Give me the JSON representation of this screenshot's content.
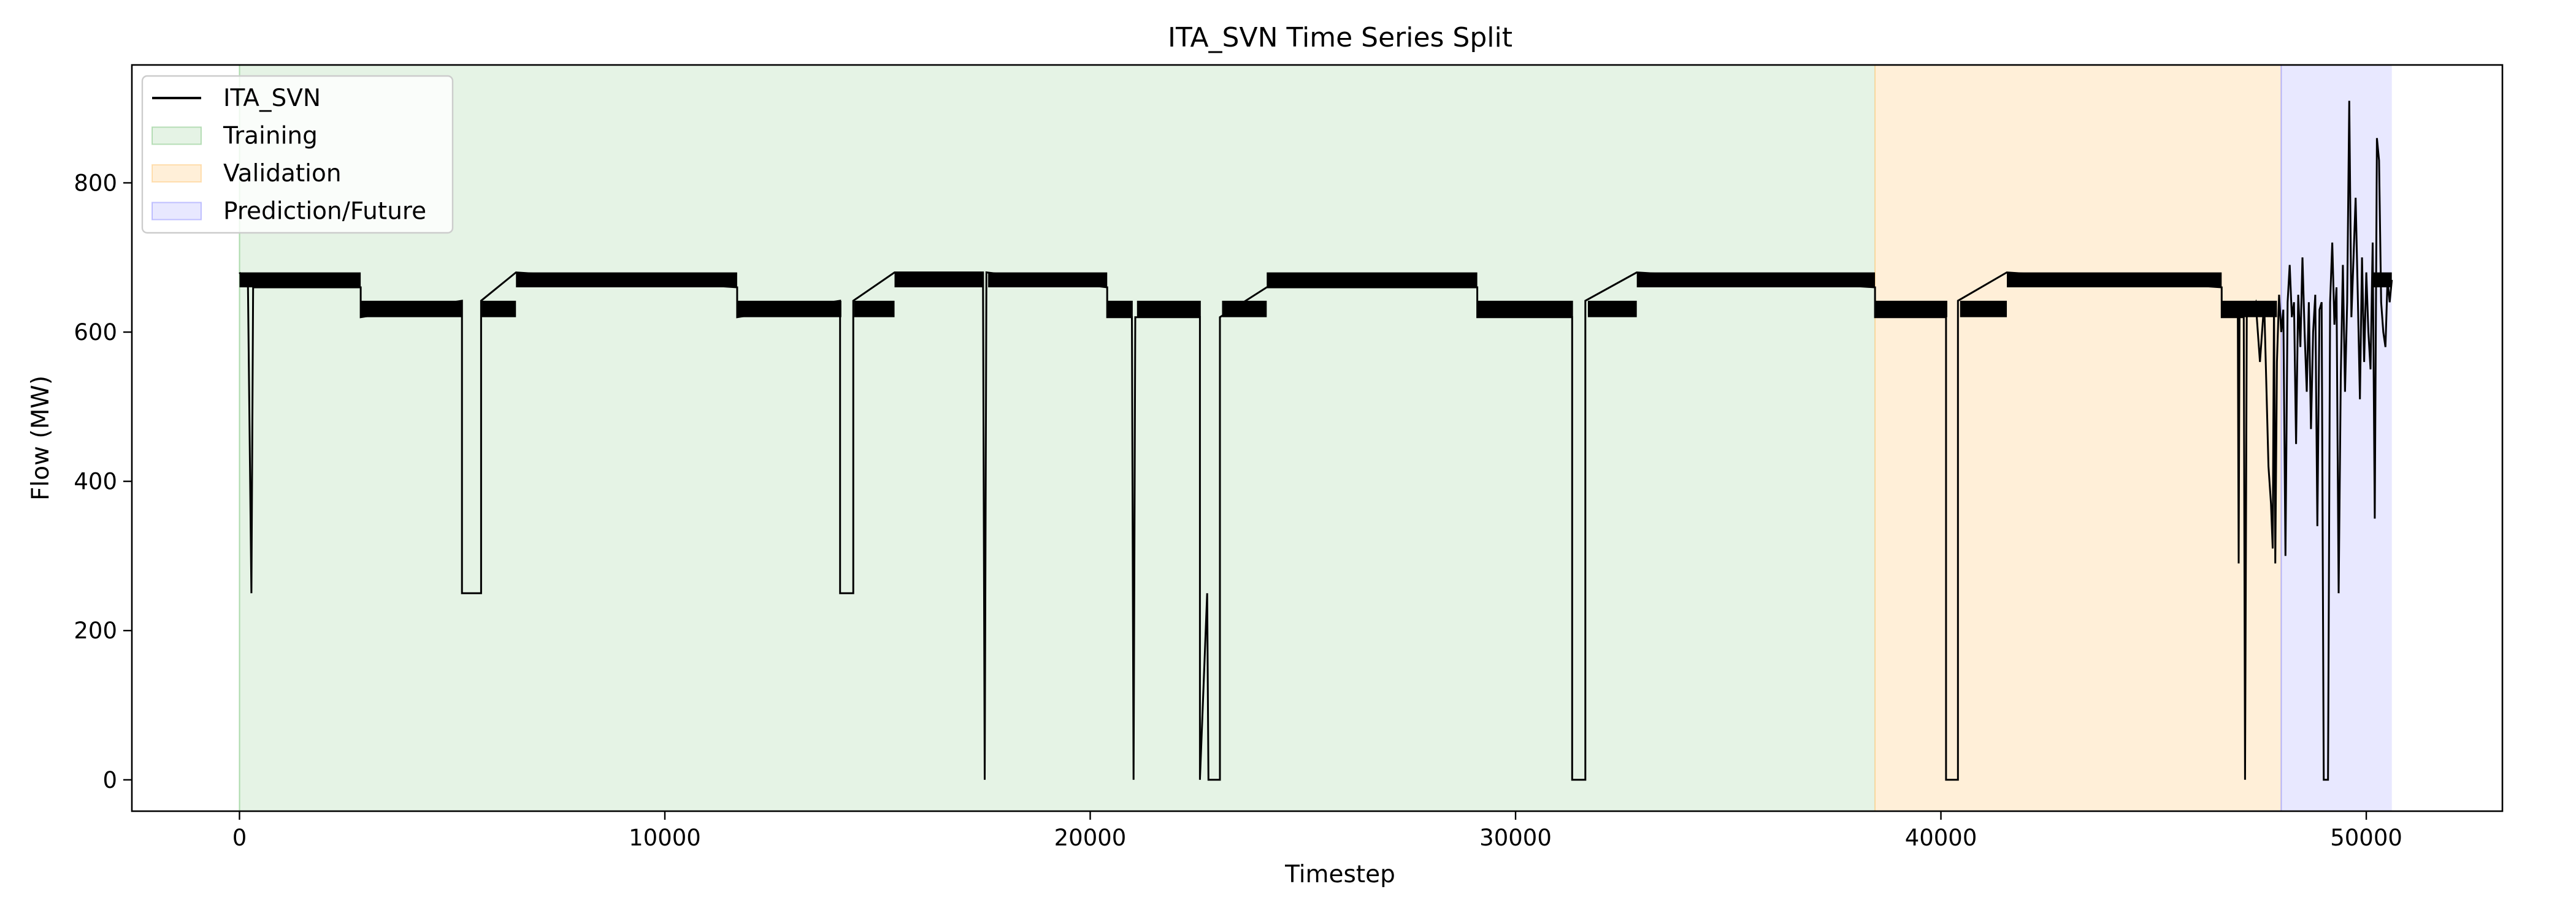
{
  "chart_data": {
    "type": "line",
    "title": "ITA_SVN Time Series Split",
    "xlabel": "Timestep",
    "ylabel": "Flow (MW)",
    "xlim": [
      -2530,
      53200
    ],
    "ylim": [
      -42,
      958
    ],
    "xticks": [
      0,
      10000,
      20000,
      30000,
      40000,
      50000
    ],
    "xtick_labels": [
      "0",
      "10000",
      "20000",
      "30000",
      "40000",
      "50000"
    ],
    "yticks": [
      0,
      200,
      400,
      600,
      800
    ],
    "ytick_labels": [
      "0",
      "200",
      "400",
      "600",
      "800"
    ],
    "grid": false,
    "legend_position": "top-left",
    "series": [
      {
        "name": "ITA_SVN",
        "color": "#000000",
        "band_ranges": [
          [
            0,
            2850,
            660,
            680
          ],
          [
            2850,
            5250,
            620,
            642
          ],
          [
            5700,
            6500,
            620,
            642
          ],
          [
            6500,
            11700,
            660,
            680
          ],
          [
            11700,
            14150,
            620,
            642
          ],
          [
            14450,
            15400,
            620,
            642
          ],
          [
            15400,
            17500,
            660,
            680
          ],
          [
            17600,
            20400,
            660,
            680
          ],
          [
            20400,
            21000,
            620,
            642
          ],
          [
            21100,
            22600,
            620,
            642
          ],
          [
            23100,
            24150,
            620,
            642
          ],
          [
            24150,
            29100,
            660,
            680
          ],
          [
            29100,
            31350,
            620,
            642
          ],
          [
            31700,
            32850,
            620,
            642
          ],
          [
            32850,
            38450,
            660,
            680
          ],
          [
            38450,
            40150,
            620,
            642
          ],
          [
            40450,
            41550,
            620,
            642
          ],
          [
            41550,
            46600,
            660,
            680
          ],
          [
            46600,
            47900,
            620,
            642
          ],
          [
            50150,
            50600,
            660,
            680
          ]
        ],
        "points": [
          [
            0,
            680
          ],
          [
            200,
            660
          ],
          [
            280,
            250
          ],
          [
            320,
            660
          ],
          [
            2850,
            660
          ],
          [
            2850,
            620
          ],
          [
            5230,
            642
          ],
          [
            5230,
            250
          ],
          [
            5680,
            250
          ],
          [
            5680,
            642
          ],
          [
            6500,
            680
          ],
          [
            11700,
            660
          ],
          [
            11700,
            620
          ],
          [
            14120,
            642
          ],
          [
            14120,
            250
          ],
          [
            14430,
            250
          ],
          [
            14430,
            642
          ],
          [
            15400,
            680
          ],
          [
            17480,
            680
          ],
          [
            17520,
            0
          ],
          [
            17560,
            680
          ],
          [
            20400,
            660
          ],
          [
            20400,
            620
          ],
          [
            20980,
            620
          ],
          [
            21020,
            0
          ],
          [
            21060,
            620
          ],
          [
            22580,
            620
          ],
          [
            22580,
            0
          ],
          [
            22750,
            250
          ],
          [
            22780,
            0
          ],
          [
            23050,
            0
          ],
          [
            23050,
            620
          ],
          [
            24150,
            660
          ],
          [
            29100,
            660
          ],
          [
            29100,
            620
          ],
          [
            31330,
            620
          ],
          [
            31330,
            0
          ],
          [
            31640,
            0
          ],
          [
            31640,
            642
          ],
          [
            32850,
            680
          ],
          [
            38450,
            660
          ],
          [
            38450,
            620
          ],
          [
            40120,
            620
          ],
          [
            40120,
            0
          ],
          [
            40400,
            0
          ],
          [
            40400,
            642
          ],
          [
            41550,
            680
          ],
          [
            46600,
            660
          ],
          [
            46600,
            620
          ],
          [
            46980,
            620
          ],
          [
            47000,
            290
          ],
          [
            47020,
            620
          ],
          [
            47120,
            620
          ],
          [
            47150,
            0
          ],
          [
            47190,
            620
          ],
          [
            47400,
            640
          ],
          [
            47500,
            560
          ],
          [
            47600,
            640
          ],
          [
            47700,
            420
          ],
          [
            47760,
            370
          ],
          [
            47800,
            310
          ],
          [
            47830,
            640
          ],
          [
            47860,
            290
          ],
          [
            47900,
            560
          ],
          [
            47950,
            650
          ],
          [
            48000,
            600
          ],
          [
            48050,
            630
          ],
          [
            48100,
            300
          ],
          [
            48150,
            640
          ],
          [
            48200,
            690
          ],
          [
            48250,
            620
          ],
          [
            48300,
            640
          ],
          [
            48350,
            450
          ],
          [
            48400,
            650
          ],
          [
            48450,
            580
          ],
          [
            48500,
            700
          ],
          [
            48550,
            600
          ],
          [
            48600,
            520
          ],
          [
            48650,
            640
          ],
          [
            48700,
            470
          ],
          [
            48750,
            600
          ],
          [
            48800,
            650
          ],
          [
            48850,
            340
          ],
          [
            48900,
            630
          ],
          [
            48950,
            640
          ],
          [
            49000,
            0
          ],
          [
            49050,
            0
          ],
          [
            49100,
            0
          ],
          [
            49150,
            640
          ],
          [
            49200,
            720
          ],
          [
            49250,
            610
          ],
          [
            49300,
            660
          ],
          [
            49350,
            250
          ],
          [
            49400,
            540
          ],
          [
            49450,
            690
          ],
          [
            49500,
            520
          ],
          [
            49550,
            640
          ],
          [
            49600,
            910
          ],
          [
            49650,
            620
          ],
          [
            49700,
            700
          ],
          [
            49750,
            780
          ],
          [
            49800,
            650
          ],
          [
            49850,
            510
          ],
          [
            49900,
            700
          ],
          [
            49950,
            560
          ],
          [
            50000,
            680
          ],
          [
            50050,
            600
          ],
          [
            50100,
            550
          ],
          [
            50150,
            720
          ],
          [
            50200,
            350
          ],
          [
            50250,
            860
          ],
          [
            50300,
            830
          ],
          [
            50350,
            640
          ],
          [
            50400,
            600
          ],
          [
            50450,
            580
          ],
          [
            50500,
            670
          ],
          [
            50550,
            640
          ],
          [
            50600,
            670
          ]
        ]
      }
    ],
    "regions": [
      {
        "name": "Training",
        "start": 0,
        "end": 38450,
        "color": "#2ca02c",
        "opacity": 0.12
      },
      {
        "name": "Validation",
        "start": 38450,
        "end": 48000,
        "color": "#ffa726",
        "opacity": 0.18
      },
      {
        "name": "Prediction/Future",
        "start": 48000,
        "end": 50600,
        "color": "#4444ff",
        "opacity": 0.12
      }
    ],
    "legend": [
      {
        "label": "ITA_SVN",
        "kind": "line",
        "color": "#000000"
      },
      {
        "label": "Training",
        "kind": "patch",
        "color": "#2ca02c",
        "opacity": 0.12
      },
      {
        "label": "Validation",
        "kind": "patch",
        "color": "#ffa726",
        "opacity": 0.18
      },
      {
        "label": "Prediction/Future",
        "kind": "patch",
        "color": "#4444ff",
        "opacity": 0.12
      }
    ]
  }
}
